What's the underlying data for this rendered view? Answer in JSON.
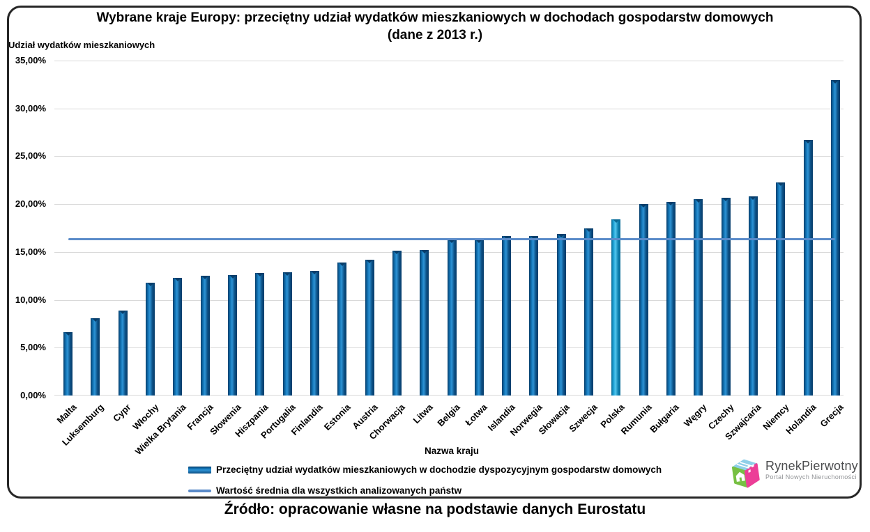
{
  "title": "Wybrane kraje Europy: przeciętny udział wydatków mieszkaniowych w dochodach gospodarstw domowych (dane z 2013 r.)",
  "y_axis_title": "Udział wydatków mieszkaniowych",
  "x_axis_title": "Nazwa kraju",
  "footer": "Źródło: opracowanie własne na podstawie danych Eurostatu",
  "legend": {
    "bar_label": "Przeciętny udział wydatków mieszkaniowych w dochodzie dyspozycyjnym gospodarstw domowych",
    "line_label": "Wartość średnia dla wszystkich analizowanych państw"
  },
  "logo": {
    "name": "RynekPierwotny",
    "subtitle": "Portal Nowych Nieruchomości"
  },
  "chart_data": {
    "type": "bar",
    "title": "Wybrane kraje Europy: przeciętny udział wydatków mieszkaniowych w dochodach gospodarstw domowych (dane z 2013 r.)",
    "xlabel": "Nazwa kraju",
    "ylabel": "Udział wydatków mieszkaniowych",
    "ylim": [
      0,
      35
    ],
    "grid": "horizontal",
    "legend_position": "bottom",
    "categories": [
      "Malta",
      "Luksemburg",
      "Cypr",
      "Włochy",
      "Wielka Brytania",
      "Francja",
      "Słowenia",
      "Hiszpania",
      "Portugalia",
      "Finlandia",
      "Estonia",
      "Austria",
      "Chorwacja",
      "Litwa",
      "Belgia",
      "Łotwa",
      "Islandia",
      "Norwegia",
      "Słowacja",
      "Szwecja",
      "Polska",
      "Rumunia",
      "Bułgaria",
      "Węgry",
      "Czechy",
      "Szwajcaria",
      "Niemcy",
      "Holandia",
      "Grecja"
    ],
    "values": [
      6.6,
      8.1,
      8.9,
      11.8,
      12.3,
      12.5,
      12.6,
      12.8,
      12.9,
      13.0,
      13.9,
      14.2,
      15.1,
      15.2,
      16.3,
      16.3,
      16.7,
      16.7,
      16.9,
      17.5,
      18.4,
      20.0,
      20.2,
      20.5,
      20.7,
      20.8,
      22.3,
      26.7,
      33.0
    ],
    "highlight_category": "Polska",
    "highlight_index": 20,
    "mean_value": 16.35,
    "y_ticks": [
      {
        "value": 35,
        "label": "35,00%"
      },
      {
        "value": 30,
        "label": "30,00%"
      },
      {
        "value": 25,
        "label": "25,00%"
      },
      {
        "value": 20,
        "label": "20,00%"
      },
      {
        "value": 15,
        "label": "15,00%"
      },
      {
        "value": 10,
        "label": "10,00%"
      },
      {
        "value": 5,
        "label": "5,00%"
      },
      {
        "value": 0,
        "label": "0,00%"
      }
    ],
    "colors": {
      "bar_dark": "#083E6B",
      "bar_mid": "#1173B4",
      "bar_light": "#2D93D5",
      "bar_edge": "#0B4D82",
      "highlight_dark": "#0A6B96",
      "highlight_mid": "#1FA6D9",
      "highlight_light": "#53C6EE",
      "highlight_edge": "#0C7FAE",
      "mean_line": "#5B8BC9",
      "gridline": "#D9D9D9",
      "border": "#262626"
    }
  }
}
